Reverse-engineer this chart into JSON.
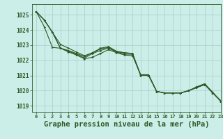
{
  "background_color": "#cceee8",
  "grid_color": "#aacccc",
  "line_color": "#2d5a27",
  "marker_color": "#2d5a27",
  "xlabel": "Graphe pression niveau de la mer (hPa)",
  "xlabel_fontsize": 7.5,
  "ylabel_ticks": [
    1019,
    1020,
    1021,
    1022,
    1023,
    1024,
    1025
  ],
  "xlim": [
    -0.5,
    23
  ],
  "ylim": [
    1018.6,
    1025.7
  ],
  "series": [
    [
      1025.2,
      1024.65,
      1023.85,
      1023.05,
      1022.8,
      1022.55,
      1022.3,
      1022.5,
      1022.75,
      1022.85,
      1022.55,
      1022.5,
      1022.45,
      1021.0,
      1021.0,
      1019.95,
      1019.85,
      1019.85,
      1019.85,
      1020.0,
      1020.2,
      1020.4,
      1019.85,
      1019.35
    ],
    [
      1025.2,
      1024.65,
      1023.85,
      1022.8,
      1022.6,
      1022.4,
      1022.15,
      1022.45,
      1022.65,
      1022.8,
      1022.55,
      1022.4,
      1022.4,
      1021.05,
      1021.05,
      1019.95,
      1019.85,
      1019.85,
      1019.85,
      1020.0,
      1020.25,
      1020.45,
      1019.9,
      1019.3
    ],
    [
      1025.2,
      1024.2,
      1022.85,
      1022.8,
      1022.55,
      1022.35,
      1022.1,
      1022.2,
      1022.45,
      1022.7,
      1022.5,
      1022.35,
      1022.3,
      1021.05,
      1021.05,
      1019.95,
      1019.85,
      1019.85,
      1019.85,
      1020.0,
      1020.2,
      1020.4,
      1019.85,
      1019.3
    ],
    [
      1025.2,
      1024.65,
      1023.85,
      1022.8,
      1022.65,
      1022.45,
      1022.25,
      1022.5,
      1022.8,
      1022.9,
      1022.6,
      1022.5,
      1022.45,
      1021.05,
      1021.0,
      1019.95,
      1019.85,
      1019.85,
      1019.85,
      1020.0,
      1020.25,
      1020.45,
      1019.85,
      1019.3
    ]
  ],
  "xtick_labels": [
    "0",
    "1",
    "2",
    "3",
    "4",
    "5",
    "6",
    "7",
    "8",
    "9",
    "10",
    "11",
    "12",
    "13",
    "14",
    "15",
    "16",
    "17",
    "18",
    "19",
    "20",
    "21",
    "22",
    "23"
  ]
}
